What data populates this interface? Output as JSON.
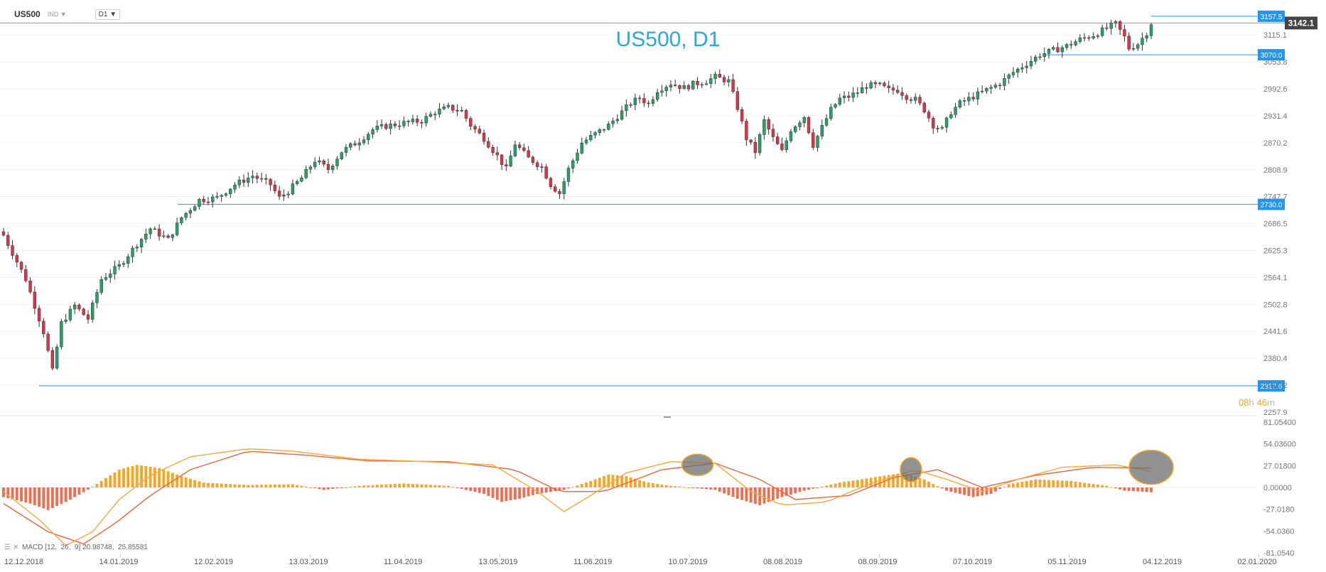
{
  "toolbar": {
    "symbol": "US500",
    "instrument_type": "IND",
    "timeframe": "D1",
    "caret": "▼"
  },
  "title": "US500, D1",
  "countdown": {
    "hours": "08",
    "h_label": "h",
    "minutes": "46",
    "m_label": "m"
  },
  "colors": {
    "up": "#26a269",
    "down": "#e0334a",
    "level": "#2196f3",
    "title": "#29a8e0",
    "macd_pos": "#f5a623",
    "macd_neg": "#f06e50",
    "signal_line": "#e8663c",
    "macd_line": "#f7a83c",
    "highlight": "#6e6e6e",
    "highlight_stroke": "#f5a623",
    "countdown": "#f5a623"
  },
  "chart_data": [
    {
      "type": "candlestick",
      "title": "US500, D1",
      "price_axis_ticks": [
        "3115.1",
        "3053.8",
        "2992.6",
        "2931.4",
        "2870.2",
        "2808.9",
        "2747.7",
        "2686.5",
        "2625.3",
        "2564.1",
        "2502.8",
        "2441.6",
        "2380.4",
        "2319.2",
        "2257.9"
      ],
      "ylim": [
        2257.9,
        3146
      ],
      "x_axis_labels": [
        "12.12.2018",
        "14.01.2019",
        "12.02.2019",
        "13.03.2019",
        "11.04.2019",
        "13.05.2019",
        "11.06.2019",
        "10.07.2019",
        "08.08.2019",
        "08.09.2019",
        "07.10.2019",
        "05.11.2019",
        "04.12.2019",
        "02.01.2020"
      ],
      "current_price": "3142.1",
      "levels": [
        {
          "label": "3157.5",
          "value": 3157.5
        },
        {
          "label": "3070.0",
          "value": 3070.0
        },
        {
          "label": "2730.0",
          "value": 2730.0
        },
        {
          "label": "2317.6",
          "value": 2317.6
        }
      ],
      "close_path": [
        [
          0,
          2660
        ],
        [
          5,
          2560
        ],
        [
          9,
          2440
        ],
        [
          11,
          2351
        ],
        [
          13,
          2460
        ],
        [
          16,
          2500
        ],
        [
          19,
          2470
        ],
        [
          22,
          2560
        ],
        [
          26,
          2590
        ],
        [
          30,
          2640
        ],
        [
          33,
          2675
        ],
        [
          37,
          2650
        ],
        [
          40,
          2700
        ],
        [
          44,
          2740
        ],
        [
          48,
          2745
        ],
        [
          52,
          2775
        ],
        [
          56,
          2795
        ],
        [
          60,
          2775
        ],
        [
          62,
          2745
        ],
        [
          64,
          2760
        ],
        [
          67,
          2790
        ],
        [
          70,
          2830
        ],
        [
          73,
          2810
        ],
        [
          76,
          2850
        ],
        [
          80,
          2875
        ],
        [
          83,
          2900
        ],
        [
          86,
          2908
        ],
        [
          90,
          2915
        ],
        [
          94,
          2920
        ],
        [
          97,
          2940
        ],
        [
          100,
          2950
        ],
        [
          103,
          2942
        ],
        [
          105,
          2910
        ],
        [
          108,
          2880
        ],
        [
          111,
          2840
        ],
        [
          113,
          2810
        ],
        [
          115,
          2868
        ],
        [
          118,
          2835
        ],
        [
          121,
          2815
        ],
        [
          123,
          2775
        ],
        [
          125,
          2755
        ],
        [
          127,
          2810
        ],
        [
          130,
          2870
        ],
        [
          133,
          2890
        ],
        [
          136,
          2910
        ],
        [
          139,
          2940
        ],
        [
          141,
          2960
        ],
        [
          143,
          2972
        ],
        [
          145,
          2958
        ],
        [
          147,
          2990
        ],
        [
          150,
          3005
        ],
        [
          153,
          2995
        ],
        [
          155,
          3003
        ],
        [
          158,
          3010
        ],
        [
          160,
          3020
        ],
        [
          163,
          3010
        ],
        [
          165,
          2950
        ],
        [
          167,
          2880
        ],
        [
          169,
          2850
        ],
        [
          171,
          2920
        ],
        [
          173,
          2880
        ],
        [
          175,
          2850
        ],
        [
          177,
          2900
        ],
        [
          180,
          2930
        ],
        [
          182,
          2865
        ],
        [
          184,
          2905
        ],
        [
          186,
          2945
        ],
        [
          188,
          2970
        ],
        [
          190,
          2975
        ],
        [
          192,
          2985
        ],
        [
          194,
          3000
        ],
        [
          197,
          3000
        ],
        [
          199,
          2990
        ],
        [
          201,
          2990
        ],
        [
          203,
          2975
        ],
        [
          205,
          2968
        ],
        [
          207,
          2945
        ],
        [
          209,
          2910
        ],
        [
          211,
          2900
        ],
        [
          213,
          2940
        ],
        [
          215,
          2960
        ],
        [
          218,
          2975
        ],
        [
          221,
          2990
        ],
        [
          224,
          3005
        ],
        [
          227,
          3030
        ],
        [
          230,
          3050
        ],
        [
          233,
          3070
        ],
        [
          236,
          3080
        ],
        [
          239,
          3090
        ],
        [
          242,
          3105
        ],
        [
          245,
          3115
        ],
        [
          248,
          3130
        ],
        [
          250,
          3140
        ],
        [
          252,
          3110
        ],
        [
          253,
          3085
        ],
        [
          255,
          3095
        ],
        [
          257,
          3120
        ],
        [
          258,
          3142
        ]
      ],
      "n_days": 259
    },
    {
      "type": "histogram+line",
      "indicator": "MACD [12, 26, 9] 20.98748, 25.85581",
      "indicator_params": "[12,  26,  9]",
      "indicator_name": "MACD",
      "macd_value": "20.98748",
      "signal_value": "25.85581",
      "y_axis_ticks": [
        "81.05400",
        "54.03600",
        "27.01800",
        "0.00000",
        "-27.0180",
        "-54.0360",
        "-81.0540"
      ],
      "ylim": [
        -81.054,
        81.054
      ],
      "macd_path": [
        [
          0,
          -5
        ],
        [
          8,
          -40
        ],
        [
          14,
          -72
        ],
        [
          20,
          -55
        ],
        [
          26,
          -15
        ],
        [
          33,
          15
        ],
        [
          42,
          38
        ],
        [
          55,
          48
        ],
        [
          65,
          45
        ],
        [
          80,
          35
        ],
        [
          95,
          32
        ],
        [
          110,
          28
        ],
        [
          120,
          -5
        ],
        [
          126,
          -30
        ],
        [
          132,
          -10
        ],
        [
          140,
          18
        ],
        [
          150,
          32
        ],
        [
          160,
          30
        ],
        [
          168,
          -5
        ],
        [
          175,
          -22
        ],
        [
          185,
          -18
        ],
        [
          195,
          5
        ],
        [
          205,
          22
        ],
        [
          212,
          10
        ],
        [
          220,
          -5
        ],
        [
          228,
          10
        ],
        [
          238,
          25
        ],
        [
          250,
          28
        ],
        [
          258,
          20
        ]
      ],
      "signal_path": [
        [
          0,
          -20
        ],
        [
          10,
          -55
        ],
        [
          18,
          -70
        ],
        [
          25,
          -45
        ],
        [
          33,
          -10
        ],
        [
          42,
          22
        ],
        [
          55,
          45
        ],
        [
          68,
          40
        ],
        [
          82,
          33
        ],
        [
          100,
          32
        ],
        [
          115,
          22
        ],
        [
          125,
          -5
        ],
        [
          135,
          -5
        ],
        [
          148,
          22
        ],
        [
          160,
          30
        ],
        [
          170,
          10
        ],
        [
          178,
          -15
        ],
        [
          190,
          -10
        ],
        [
          200,
          12
        ],
        [
          210,
          22
        ],
        [
          220,
          0
        ],
        [
          232,
          15
        ],
        [
          245,
          25
        ],
        [
          258,
          24
        ]
      ],
      "histogram_path": [
        [
          0,
          -12
        ],
        [
          6,
          -20
        ],
        [
          10,
          -28
        ],
        [
          14,
          -18
        ],
        [
          18,
          -6
        ],
        [
          22,
          8
        ],
        [
          26,
          22
        ],
        [
          30,
          28
        ],
        [
          35,
          24
        ],
        [
          40,
          14
        ],
        [
          45,
          6
        ],
        [
          55,
          3
        ],
        [
          65,
          4
        ],
        [
          72,
          -3
        ],
        [
          80,
          2
        ],
        [
          90,
          5
        ],
        [
          100,
          2
        ],
        [
          108,
          -8
        ],
        [
          112,
          -18
        ],
        [
          116,
          -14
        ],
        [
          120,
          -8
        ],
        [
          126,
          -3
        ],
        [
          132,
          8
        ],
        [
          136,
          16
        ],
        [
          140,
          14
        ],
        [
          145,
          6
        ],
        [
          150,
          2
        ],
        [
          160,
          -3
        ],
        [
          165,
          -14
        ],
        [
          170,
          -22
        ],
        [
          175,
          -12
        ],
        [
          180,
          -4
        ],
        [
          188,
          6
        ],
        [
          195,
          12
        ],
        [
          202,
          18
        ],
        [
          207,
          10
        ],
        [
          212,
          -4
        ],
        [
          218,
          -12
        ],
        [
          222,
          -8
        ],
        [
          226,
          4
        ],
        [
          232,
          10
        ],
        [
          240,
          8
        ],
        [
          248,
          2
        ],
        [
          252,
          -4
        ],
        [
          258,
          -6
        ]
      ],
      "highlights": [
        {
          "x": 156,
          "y": 28
        },
        {
          "x": 204,
          "y": 22
        },
        {
          "x": 258,
          "y": 25
        }
      ]
    }
  ]
}
